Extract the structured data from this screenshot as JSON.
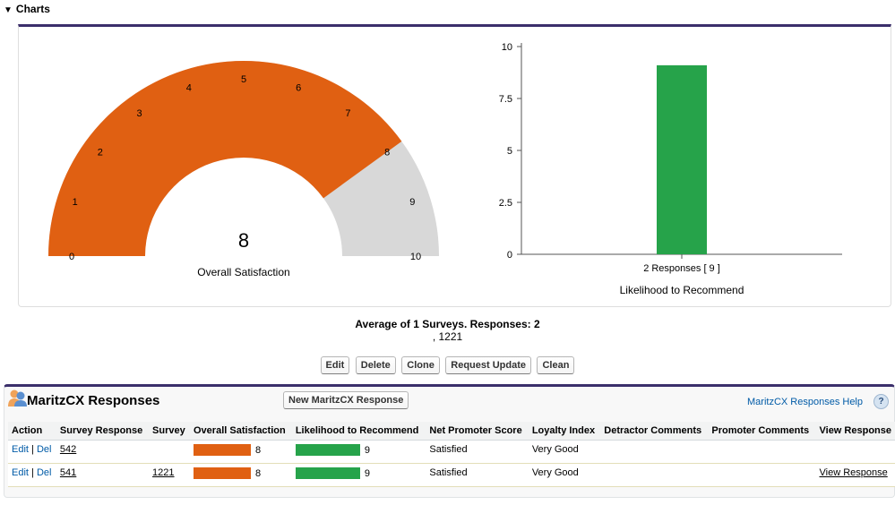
{
  "section": {
    "title": "Charts",
    "toggle_icon": "triangle-down-icon"
  },
  "gauge": {
    "value": 8,
    "min": 0,
    "max": 10,
    "ticks": [
      "0",
      "1",
      "2",
      "3",
      "4",
      "5",
      "6",
      "7",
      "8",
      "9",
      "10"
    ],
    "value_label": "8",
    "label": "Overall Satisfaction",
    "fill_color": "#e06012",
    "track_color": "#d8d8d8"
  },
  "chart_data": {
    "type": "bar",
    "categories": [
      "2 Responses [ 9 ]"
    ],
    "values": [
      9.1
    ],
    "xlabel": "Likelihood to Recommend",
    "ylabel": "",
    "ylim": [
      0,
      10
    ],
    "yticks": [
      0,
      2.5,
      5,
      7.5,
      10
    ],
    "ytick_labels": [
      "0",
      "2.5",
      "5",
      "7.5",
      "10"
    ],
    "bar_color": "#26a34a"
  },
  "summary": {
    "average_text": "Average of 1 Surveys. Responses: 2",
    "sub_text": ", 1221"
  },
  "actions": [
    "Edit",
    "Delete",
    "Clone",
    "Request Update",
    "Clean"
  ],
  "related_list": {
    "title": "MaritzCX Responses",
    "icon": "people-icon",
    "new_button": "New MaritzCX Response",
    "help_link": "MaritzCX Responses Help",
    "help_icon": "?",
    "columns": [
      "Action",
      "Survey Response",
      "Survey",
      "Overall Satisfaction",
      "Likelihood to Recommend",
      "Net Promoter Score",
      "Loyalty Index",
      "Detractor Comments",
      "Promoter Comments",
      "View Response"
    ],
    "rows": [
      {
        "edit": "Edit",
        "sep": "|",
        "del": "Del",
        "survey_response": "542",
        "survey": "",
        "overall": "8",
        "overall_fraction": 0.8,
        "likelihood": "9",
        "likelihood_fraction": 0.9,
        "nps": "Satisfied",
        "loyalty": "Very Good",
        "detractor": "",
        "promoter": "",
        "view": ""
      },
      {
        "edit": "Edit",
        "sep": "|",
        "del": "Del",
        "survey_response": "541",
        "survey": "1221",
        "overall": "8",
        "overall_fraction": 0.8,
        "likelihood": "9",
        "likelihood_fraction": 0.9,
        "nps": "Satisfied",
        "loyalty": "Very Good",
        "detractor": "",
        "promoter": "",
        "view": "View Response"
      }
    ],
    "bar_colors": {
      "overall": "#e06012",
      "likelihood": "#26a34a"
    }
  }
}
